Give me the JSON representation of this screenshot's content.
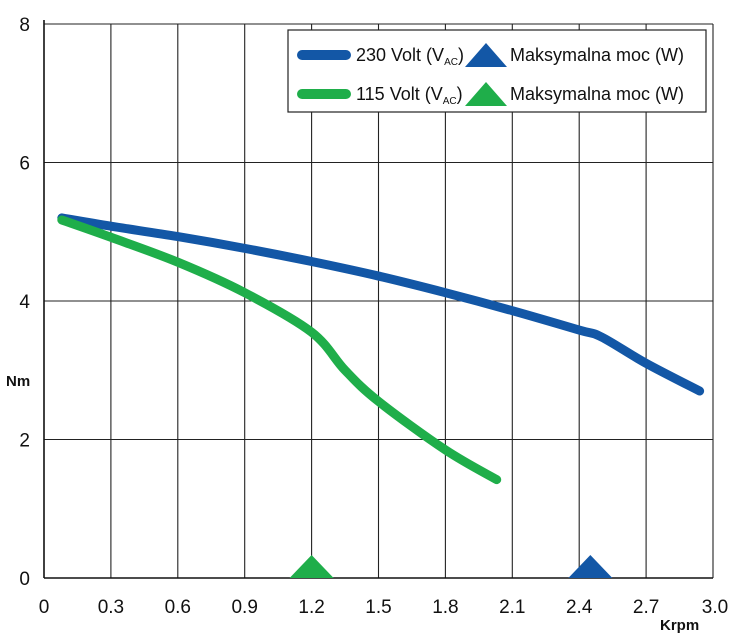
{
  "chart_data": {
    "type": "line",
    "xlabel": "Krpm",
    "ylabel": "Nm",
    "xlim": [
      0,
      3.0
    ],
    "ylim": [
      0,
      8
    ],
    "x_ticks": [
      "0",
      "0.3",
      "0.6",
      "0.9",
      "1.2",
      "1.5",
      "1.8",
      "2.1",
      "2.4",
      "2.7",
      "3.0"
    ],
    "y_ticks": [
      "0",
      "2",
      "4",
      "6",
      "8"
    ],
    "grid": true,
    "legend_position": "top-right",
    "series": [
      {
        "name": "230 Volt (V",
        "name_sub": "AC",
        "name_end": ")",
        "color": "#1357a6",
        "points": [
          [
            0.08,
            5.2
          ],
          [
            0.3,
            5.08
          ],
          [
            0.6,
            4.93
          ],
          [
            0.9,
            4.76
          ],
          [
            1.2,
            4.57
          ],
          [
            1.5,
            4.36
          ],
          [
            1.8,
            4.12
          ],
          [
            2.1,
            3.86
          ],
          [
            2.4,
            3.58
          ],
          [
            2.5,
            3.48
          ],
          [
            2.7,
            3.1
          ],
          [
            2.94,
            2.7
          ]
        ]
      },
      {
        "name": "115 Volt (V",
        "name_sub": "AC",
        "name_end": ")",
        "color": "#1fae4a",
        "points": [
          [
            0.08,
            5.17
          ],
          [
            0.3,
            4.92
          ],
          [
            0.6,
            4.56
          ],
          [
            0.9,
            4.12
          ],
          [
            1.2,
            3.55
          ],
          [
            1.35,
            3.0
          ],
          [
            1.5,
            2.55
          ],
          [
            1.8,
            1.85
          ],
          [
            2.03,
            1.42
          ]
        ]
      }
    ],
    "markers": [
      {
        "name": "Maksymalna moc (W)",
        "x": 2.45,
        "color": "#1357a6",
        "shape": "triangle"
      },
      {
        "name": "Maksymalna moc (W)",
        "x": 1.2,
        "color": "#1fae4a",
        "shape": "triangle"
      }
    ]
  }
}
